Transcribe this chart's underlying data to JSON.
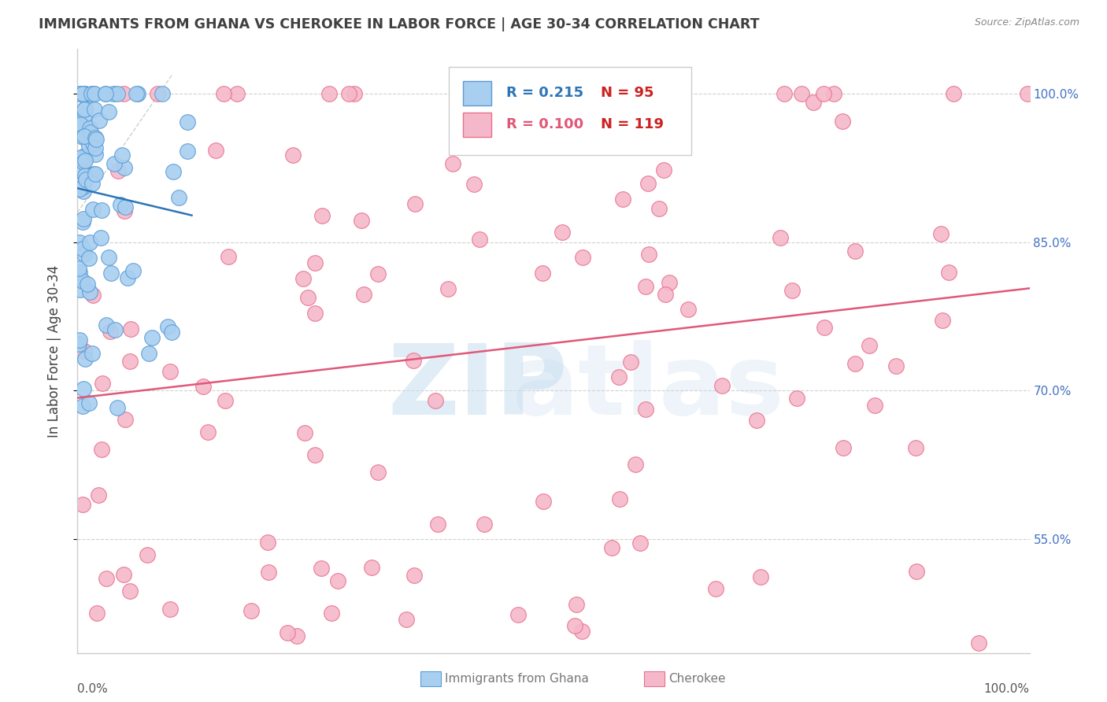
{
  "title": "IMMIGRANTS FROM GHANA VS CHEROKEE IN LABOR FORCE | AGE 30-34 CORRELATION CHART",
  "source": "Source: ZipAtlas.com",
  "ylabel": "In Labor Force | Age 30-34",
  "xlim": [
    0.0,
    1.0
  ],
  "ylim": [
    0.435,
    1.045
  ],
  "yticks": [
    0.55,
    0.7,
    0.85,
    1.0
  ],
  "ytick_labels": [
    "55.0%",
    "70.0%",
    "85.0%",
    "100.0%"
  ],
  "ghana_R": 0.215,
  "ghana_N": 95,
  "cherokee_R": 0.1,
  "cherokee_N": 119,
  "ghana_color": "#a8cff0",
  "cherokee_color": "#f5b8cb",
  "ghana_edge_color": "#5b9bd5",
  "cherokee_edge_color": "#e8718a",
  "ghana_line_color": "#2e75b6",
  "cherokee_line_color": "#e05878",
  "axis_label_color": "#4472c4",
  "title_color": "#404040",
  "ylabel_color": "#404040",
  "source_color": "#888888",
  "background_color": "#ffffff",
  "grid_color": "#d0d0d0",
  "watermark_zip_color": "#c8def0",
  "watermark_atlas_color": "#c8ddf0"
}
